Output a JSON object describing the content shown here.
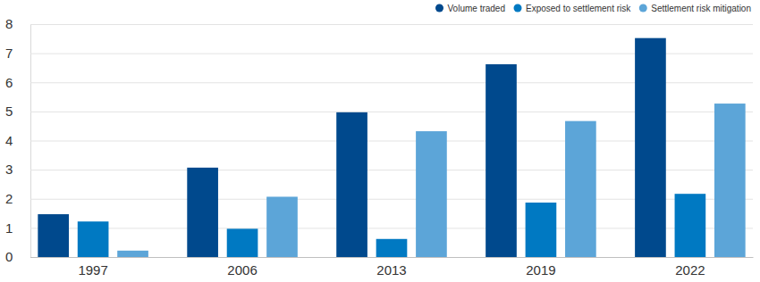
{
  "chart_data": {
    "type": "bar",
    "categories": [
      "1997",
      "2006",
      "2013",
      "2019",
      "2022"
    ],
    "series": [
      {
        "name": "Volume traded",
        "color": "#00498d",
        "values": [
          1.47,
          3.07,
          4.97,
          6.62,
          7.52
        ]
      },
      {
        "name": "Exposed to settlement risk",
        "color": "#0079c2",
        "values": [
          1.22,
          0.97,
          0.62,
          1.87,
          2.17
        ]
      },
      {
        "name": "Settlement risk mitigation",
        "color": "#5ca5d8",
        "values": [
          0.22,
          2.07,
          4.32,
          4.67,
          5.27
        ]
      }
    ],
    "ylim": [
      0,
      8
    ],
    "yticks": [
      0,
      1,
      2,
      3,
      4,
      5,
      6,
      7,
      8
    ],
    "grid": true,
    "legend": "top-right"
  }
}
